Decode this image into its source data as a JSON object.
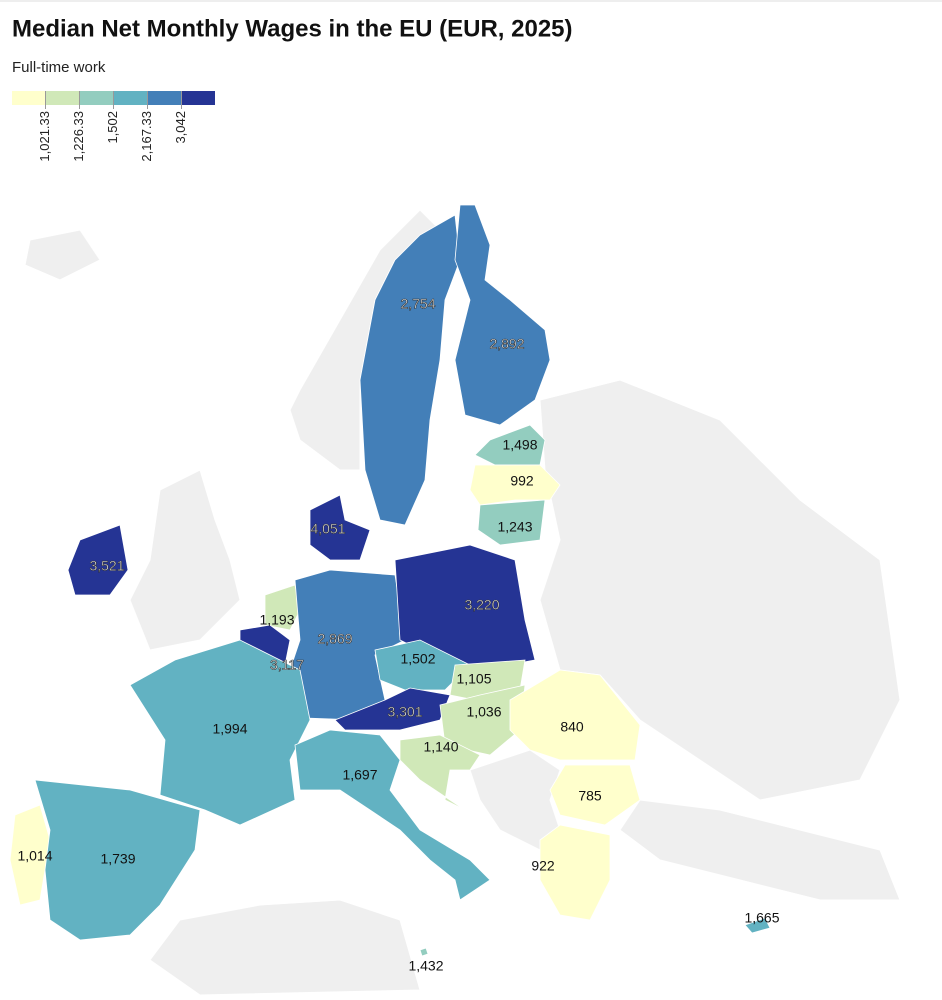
{
  "chart_data": {
    "type": "choropleth",
    "title": "Median Net Monthly Wages in the EU (EUR, 2025)",
    "subtitle": "Full-time work",
    "values": [
      2754,
      2892,
      1498,
      992,
      1243,
      4051,
      3521,
      1193,
      3117,
      2869,
      3220,
      1502,
      1105,
      3301,
      1036,
      840,
      1994,
      1140,
      1697,
      785,
      1014,
      1739,
      922,
      1665,
      1432
    ],
    "value_labels": [
      "2,754",
      "2,892",
      "1,498",
      "992",
      "1,243",
      "4,051",
      "3,521",
      "1,193",
      "3,117",
      "2,869",
      "3,220",
      "1,502",
      "1,105",
      "3,301",
      "1,036",
      "840",
      "1,994",
      "1,140",
      "1,697",
      "785",
      "1,014",
      "1,739",
      "922",
      "1,665",
      "1,432"
    ],
    "legend_ticks": [
      {
        "value": 1021.33,
        "label": "1,021.33"
      },
      {
        "value": 1226.33,
        "label": "1,226.33"
      },
      {
        "value": 1502,
        "label": "1,502"
      },
      {
        "value": 2167.33,
        "label": "2,167.33"
      },
      {
        "value": 3042,
        "label": "3,042"
      }
    ],
    "colors": [
      "#ffffcc",
      "#d0e8b8",
      "#93cdbf",
      "#62b2c2",
      "#437fb8",
      "#253494"
    ]
  }
}
